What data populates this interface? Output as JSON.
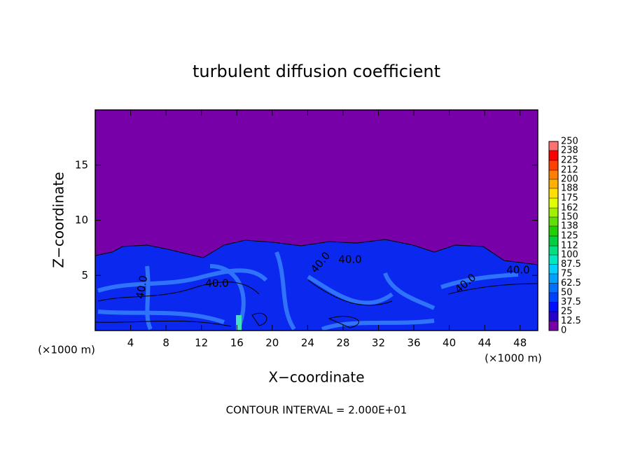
{
  "chart_data": {
    "type": "contour",
    "title": "turbulent diffusion coefficient",
    "x_label": "X−coordinate",
    "y_label": "Z−coordinate",
    "x_unit": "(×1000 m)",
    "footer": "CONTOUR INTERVAL = 2.000E+01",
    "xlim": [
      0,
      50
    ],
    "ylim": [
      0,
      20
    ],
    "xticks": [
      4,
      8,
      12,
      16,
      20,
      24,
      28,
      32,
      36,
      40,
      44,
      48
    ],
    "yticks": [
      5,
      10,
      15
    ],
    "contour_labels": [
      "40.0",
      "40.0",
      "40.0",
      "40.0",
      "40.0",
      "40.0"
    ],
    "colorbar": {
      "clim": [
        0,
        250
      ],
      "ticks": [
        0,
        12.5,
        25,
        37.5,
        50,
        62.5,
        75,
        87.5,
        100,
        112,
        125,
        138,
        150,
        162,
        175,
        188,
        200,
        212,
        225,
        238,
        250
      ],
      "colors": [
        "#7800a8",
        "#2800cc",
        "#0010ff",
        "#0040ff",
        "#0070ff",
        "#00a0ff",
        "#00d0ff",
        "#00e8c0",
        "#00e080",
        "#00d040",
        "#20d000",
        "#60e000",
        "#a0f000",
        "#e0ff00",
        "#ffe000",
        "#ffb000",
        "#ff8000",
        "#ff4000",
        "#ff0000",
        "#ff7070"
      ]
    }
  }
}
